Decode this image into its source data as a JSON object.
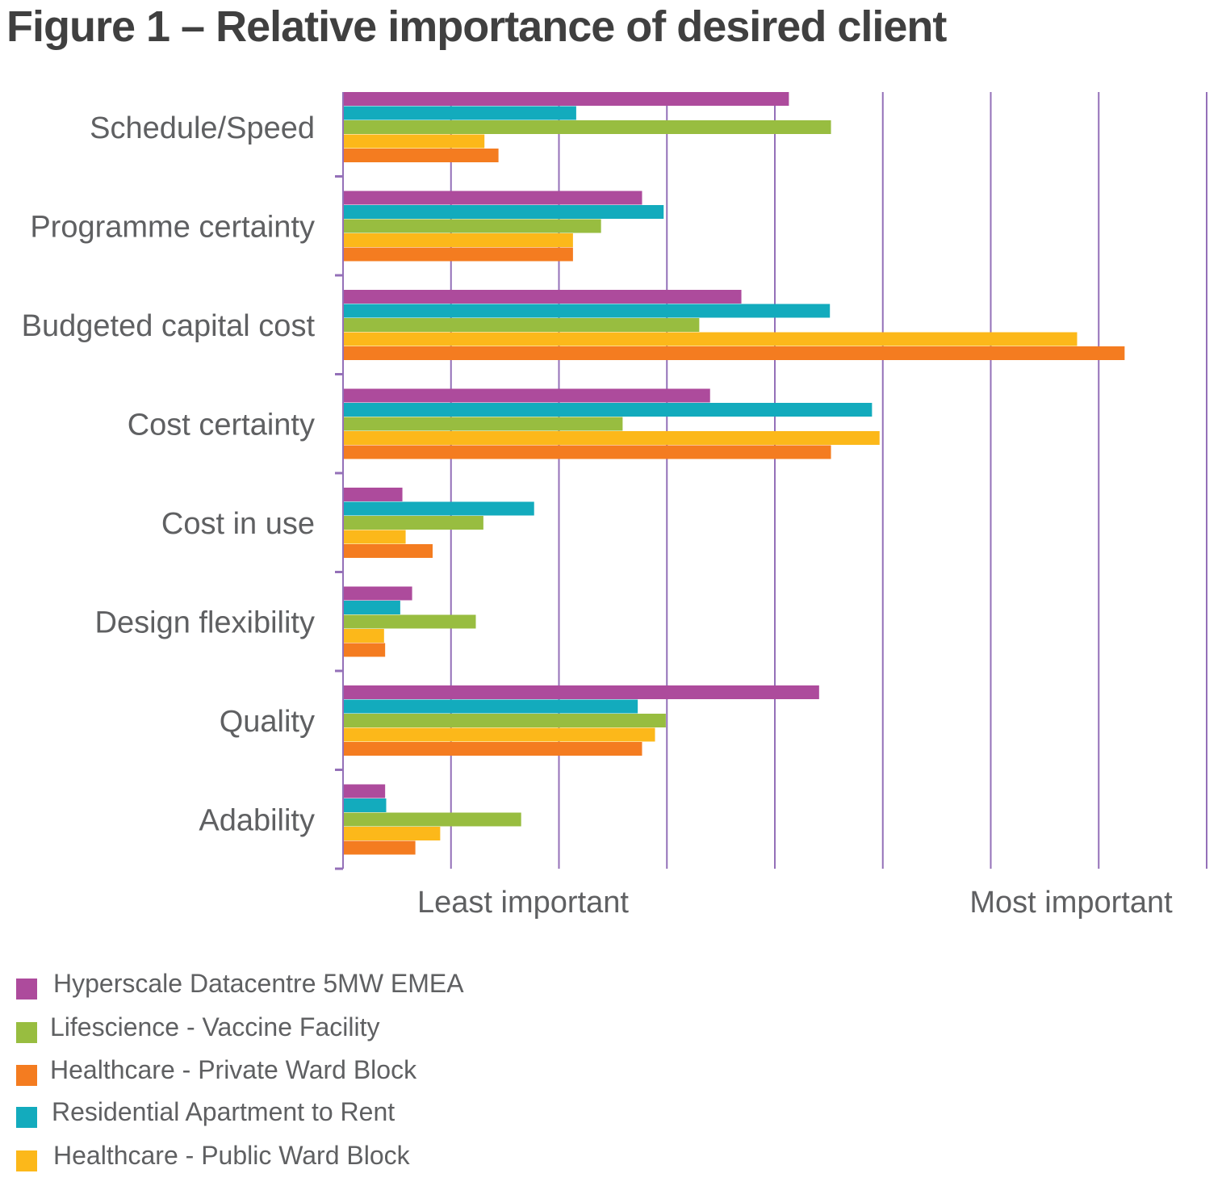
{
  "title": "Figure 1 – Relative importance of desired client",
  "chart_data": {
    "type": "bar",
    "orientation": "horizontal",
    "title": "Figure 1 – Relative importance of desired client",
    "xlabel_left": "Least important",
    "xlabel_right": "Most important",
    "ylabel": "",
    "xlim": [
      0,
      8
    ],
    "x_units": "relative importance (gridline units, no numeric tick labels shown)",
    "grid": true,
    "legend_position": "bottom-left",
    "categories": [
      "Schedule/Speed",
      "Programme certainty",
      "Budgeted capital cost",
      "Cost certainty",
      "Cost in use",
      "Design flexibility",
      "Quality",
      "Adability"
    ],
    "series": [
      {
        "name": "Hyperscale Datacentre 5MW EMEA",
        "color": "#ad4b9c",
        "bar_order": 0,
        "values": [
          4.13,
          2.77,
          3.69,
          3.4,
          0.55,
          0.64,
          4.41,
          0.39
        ]
      },
      {
        "name": "Residential Apartment to Rent",
        "color": "#13abbd",
        "bar_order": 1,
        "values": [
          2.16,
          2.97,
          4.51,
          4.9,
          1.77,
          0.53,
          2.73,
          0.4
        ]
      },
      {
        "name": "Lifescience - Vaccine Facility",
        "color": "#98bd40",
        "bar_order": 2,
        "values": [
          4.52,
          2.39,
          3.3,
          2.59,
          1.3,
          1.23,
          2.99,
          1.65
        ]
      },
      {
        "name": "Healthcare - Public Ward Block",
        "color": "#fcb81a",
        "bar_order": 3,
        "values": [
          1.31,
          2.13,
          6.8,
          4.97,
          0.58,
          0.38,
          2.89,
          0.9
        ]
      },
      {
        "name": "Healthcare - Private Ward Block",
        "color": "#f47c20",
        "bar_order": 4,
        "values": [
          1.44,
          2.13,
          7.24,
          4.52,
          0.83,
          0.39,
          2.77,
          0.67
        ]
      }
    ],
    "legend": [
      {
        "label": "Hyperscale Datacentre 5MW EMEA",
        "color": "#ad4b9c"
      },
      {
        "label": "Lifescience - Vaccine Facility",
        "color": "#98bd40"
      },
      {
        "label": "Healthcare - Private Ward Block",
        "color": "#f47c20"
      },
      {
        "label": "Residential Apartment to Rent",
        "color": "#13abbd"
      },
      {
        "label": "Healthcare - Public Ward Block",
        "color": "#fcb81a"
      }
    ],
    "axis_color": "#9470b8"
  }
}
